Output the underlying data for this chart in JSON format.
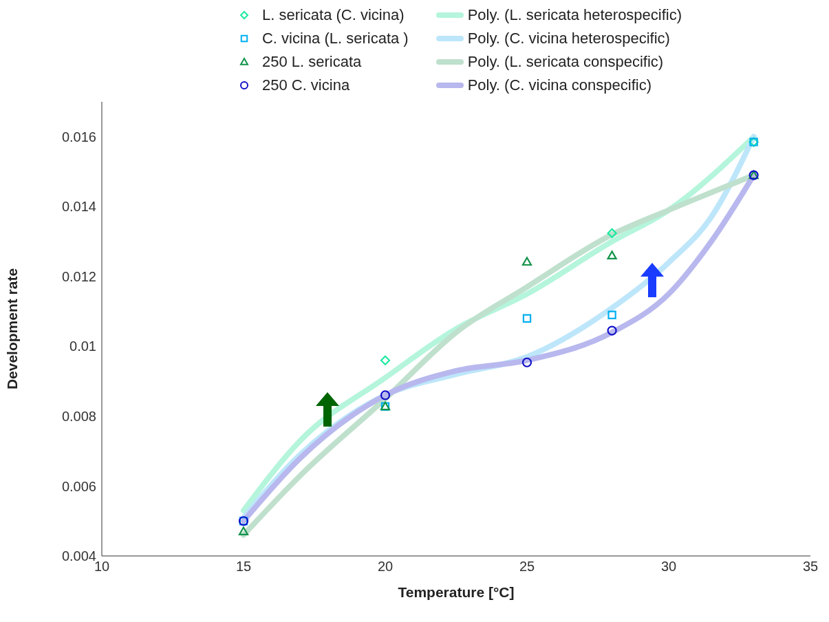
{
  "chart_data": {
    "type": "scatter",
    "xlabel": "Temperature [°C]",
    "ylabel": "Development rate",
    "xlim": [
      10,
      35
    ],
    "xticks": [
      10,
      15,
      20,
      25,
      30,
      35
    ],
    "ylim": [
      0.004,
      0.017
    ],
    "yticks": [
      0.004,
      0.006,
      0.008,
      0.01,
      0.012,
      0.014,
      0.016
    ],
    "grid": false,
    "legend": "top",
    "series": [
      {
        "name": "L. sericata (C. vicina)",
        "marker": "diamond",
        "color": "#1de9a0",
        "x": [
          20,
          28,
          33
        ],
        "values": [
          0.0096,
          0.01324,
          0.01585
        ]
      },
      {
        "name": "C. vicina (L. sericata )",
        "marker": "square",
        "color": "#00b0f0",
        "x": [
          15,
          20,
          25,
          28,
          33
        ],
        "values": [
          0.005,
          0.00828,
          0.0108,
          0.0109,
          0.01585
        ]
      },
      {
        "name": "250 L. sericata",
        "marker": "triangle",
        "color": "#13944a",
        "x": [
          15,
          20,
          25,
          28,
          33
        ],
        "values": [
          0.0047,
          0.00828,
          0.01242,
          0.0126,
          0.0149
        ]
      },
      {
        "name": "250 C. vicina",
        "marker": "circle",
        "color": "#1010c8",
        "x": [
          15,
          20,
          25,
          28,
          33
        ],
        "values": [
          0.005,
          0.0086,
          0.00954,
          0.01045,
          0.0149
        ]
      },
      {
        "name": "Poly. (L. sericata heterospecific)",
        "type": "line",
        "marker": "none",
        "line_style": "solid",
        "color": "#b4f5dc",
        "x": [
          15,
          17,
          20,
          22.5,
          25,
          28,
          30,
          33
        ],
        "values": [
          0.0053,
          0.0073,
          0.0091,
          0.0105,
          0.0115,
          0.013,
          0.0139,
          0.016
        ]
      },
      {
        "name": "Poly. (C. vicina heterospecific)",
        "type": "line",
        "marker": "none",
        "line_style": "solid",
        "color": "#bde6fa",
        "x": [
          15,
          17,
          20,
          22.5,
          25,
          28,
          30,
          31.5,
          33
        ],
        "values": [
          0.0051,
          0.0069,
          0.0086,
          0.0092,
          0.0097,
          0.0111,
          0.0124,
          0.0137,
          0.016
        ]
      },
      {
        "name": "Poly. (L. sericata conspecific)",
        "type": "line",
        "marker": "none",
        "line_style": "solid",
        "color": "#bfe0cd",
        "x": [
          15,
          17,
          20,
          22.5,
          25,
          28,
          30,
          33
        ],
        "values": [
          0.0046,
          0.0063,
          0.0085,
          0.0104,
          0.0117,
          0.0132,
          0.0139,
          0.0149
        ]
      },
      {
        "name": "Poly. (C. vicina conspecific)",
        "type": "line",
        "marker": "none",
        "line_style": "solid",
        "color": "#b8b8ee",
        "x": [
          15,
          17,
          20,
          22.5,
          25,
          28,
          30,
          31.5,
          33
        ],
        "values": [
          0.005,
          0.0068,
          0.0086,
          0.0093,
          0.0096,
          0.0104,
          0.0115,
          0.013,
          0.0149
        ]
      }
    ]
  }
}
